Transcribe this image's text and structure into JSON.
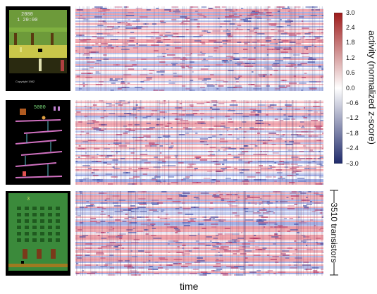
{
  "chart_data": {
    "type": "heatmap",
    "panels": [
      {
        "game": "Pitfall!",
        "thumb_score": "2000",
        "thumb_timer": "1 20:00",
        "thumb_caption": "Copyright 1982"
      },
      {
        "game": "Donkey Kong",
        "thumb_score": "5000"
      },
      {
        "game": "Space Invaders",
        "thumb_score": "3"
      }
    ],
    "xlabel": "time",
    "ylabel": "3510 transistors",
    "colorbar": {
      "label": "activity (normalized z-score)",
      "ticks": [
        "3.0",
        "2.4",
        "1.8",
        "1.2",
        "0.6",
        "0.0",
        "−0.6",
        "−1.2",
        "−1.8",
        "−2.4",
        "−3.0"
      ],
      "range": [
        -3.0,
        3.0
      ],
      "colormap": [
        "#1f2a6b",
        "#ffffff",
        "#9e1a1a"
      ]
    },
    "grid": false
  }
}
